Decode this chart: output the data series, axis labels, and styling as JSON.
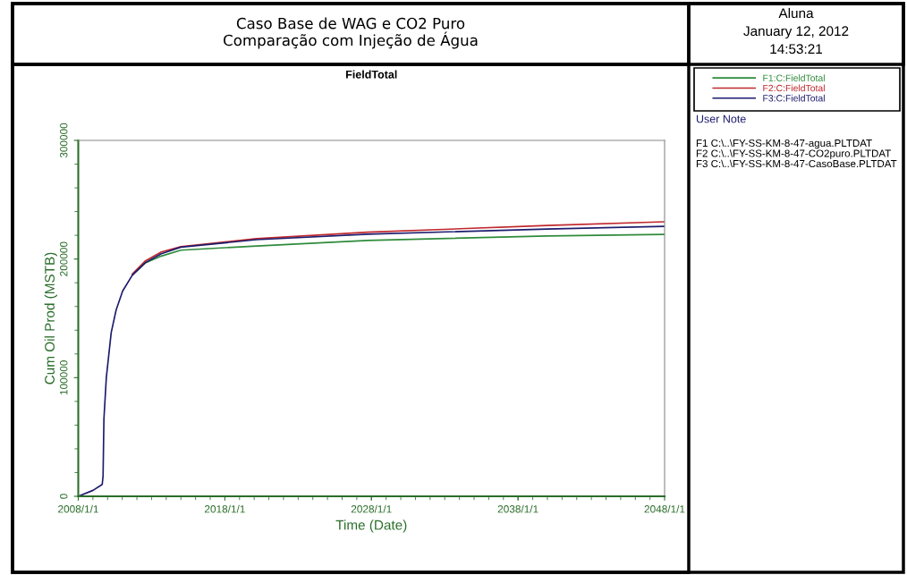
{
  "chart_data": {
    "type": "line",
    "title": "Caso Base de WAG e CO2 Puro\nComparação com Injeção de Água",
    "subtitle": "FieldTotal",
    "xlabel": "Time (Date)",
    "ylabel": "Cum Oil Prod (MSTB)",
    "x": [
      "2008-01-01",
      "2009-01-01",
      "2009-08-20",
      "2009-09-10",
      "2009-10-01",
      "2009-11-30",
      "2010-04-01",
      "2010-08-01",
      "2011-01-10",
      "2011-09-10",
      "2012-08-01",
      "2013-09-01",
      "2015-01-01",
      "2020-03-01",
      "2027-10-01",
      "2040-01-01",
      "2048-01-01"
    ],
    "series": [
      {
        "name": "F1:C:FieldTotal",
        "color": "#2e8b3a",
        "values": [
          null,
          null,
          null,
          null,
          null,
          null,
          null,
          null,
          null,
          186500,
          196800,
          202500,
          207500,
          211000,
          215700,
          219500,
          220700
        ]
      },
      {
        "name": "F2:C:FieldTotal",
        "color": "#c0282d",
        "values": [
          null,
          null,
          null,
          null,
          null,
          null,
          null,
          null,
          null,
          187500,
          198500,
          206000,
          210500,
          217200,
          222600,
          228300,
          231400
        ]
      },
      {
        "name": "F3:C:FieldTotal",
        "color": "#1c1c6e",
        "values": [
          0,
          5000,
          10000,
          17000,
          65000,
          100000,
          138000,
          157000,
          173000,
          186500,
          197000,
          204500,
          210000,
          216300,
          221000,
          225300,
          227600
        ]
      }
    ],
    "xlim": [
      "2008-01-01",
      "2048-01-01"
    ],
    "xticks": [
      {
        "value": "2008-01-01",
        "label": "2008/1/1"
      },
      {
        "value": "2018-01-01",
        "label": "2018/1/1"
      },
      {
        "value": "2028-01-01",
        "label": "2028/1/1"
      },
      {
        "value": "2038-01-01",
        "label": "2038/1/1"
      },
      {
        "value": "2048-01-01",
        "label": "2048/1/1"
      }
    ],
    "ylim": [
      0,
      300000
    ],
    "yticks": [
      0,
      100000,
      200000,
      300000
    ],
    "grid": false,
    "legend": "right",
    "marker": "none",
    "line_style": "solid",
    "annotations": [
      "Aluna",
      "January 12, 2012",
      "14:53:21",
      "User Note",
      "F1 C:\\..\\FY-SS-KM-8-47-agua.PLTDAT",
      "F2 C:\\..\\FY-SS-KM-8-47-CO2puro.PLTDAT",
      "F3 C:\\..\\FY-SS-KM-8-47-CasoBase.PLTDAT"
    ]
  }
}
